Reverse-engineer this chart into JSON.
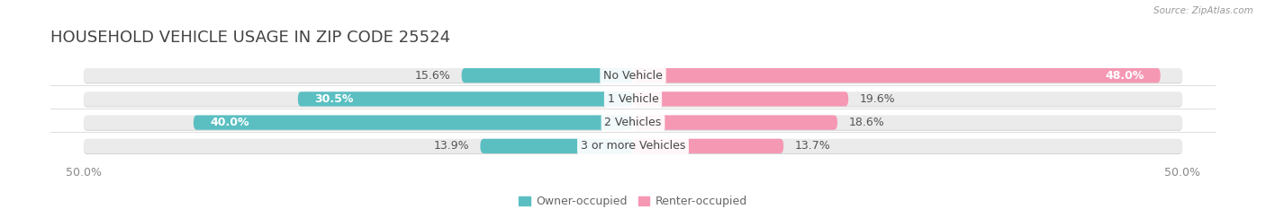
{
  "title": "HOUSEHOLD VEHICLE USAGE IN ZIP CODE 25524",
  "source": "Source: ZipAtlas.com",
  "categories": [
    "No Vehicle",
    "1 Vehicle",
    "2 Vehicles",
    "3 or more Vehicles"
  ],
  "owner_values": [
    15.6,
    30.5,
    40.0,
    13.9
  ],
  "renter_values": [
    48.0,
    19.6,
    18.6,
    13.7
  ],
  "owner_color": "#5bbfc2",
  "renter_color": "#f598b4",
  "bar_bg_color": "#ebebeb",
  "bar_shadow_color": "#d5d5d5",
  "axis_range": 50.0,
  "tick_label_left": "50.0%",
  "tick_label_right": "50.0%",
  "legend_owner": "Owner-occupied",
  "legend_renter": "Renter-occupied",
  "title_fontsize": 13,
  "label_fontsize": 9,
  "tick_fontsize": 9,
  "bar_height": 0.62,
  "background_color": "#ffffff"
}
